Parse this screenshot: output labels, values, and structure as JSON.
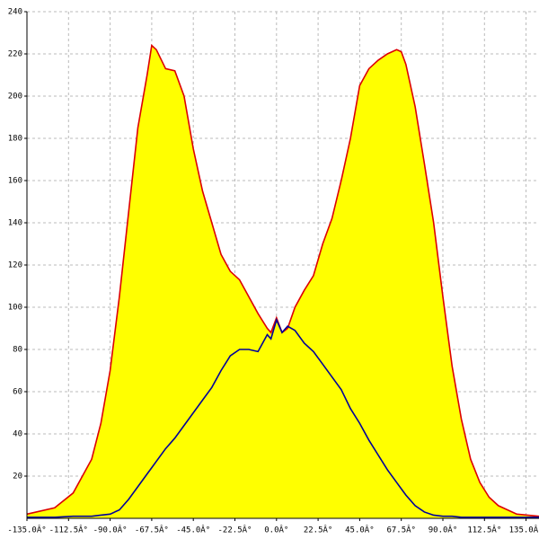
{
  "chart_data": {
    "type": "line",
    "x": [
      -135,
      -120,
      -110,
      -100,
      -95,
      -90,
      -85,
      -80,
      -75,
      -70,
      -67.5,
      -65,
      -60,
      -55,
      -50,
      -45,
      -40,
      -35,
      -30,
      -25,
      -20,
      -15,
      -10,
      -5,
      -3,
      0,
      3,
      6,
      10,
      15,
      20,
      25,
      30,
      35,
      40,
      45,
      50,
      55,
      60,
      65,
      67.5,
      70,
      75,
      80,
      85,
      90,
      95,
      100,
      105,
      110,
      115,
      120,
      130,
      142
    ],
    "series": [
      {
        "color": "#dd0000",
        "fill": "#ffff00",
        "values": [
          2,
          5,
          12,
          28,
          45,
          70,
          105,
          145,
          185,
          210,
          224,
          222,
          213,
          212,
          200,
          175,
          155,
          140,
          125,
          117,
          113,
          105,
          97,
          90,
          88,
          95,
          88,
          90,
          100,
          108,
          115,
          130,
          142,
          160,
          180,
          205,
          213,
          217,
          220,
          222,
          221,
          215,
          195,
          168,
          140,
          105,
          72,
          47,
          28,
          17,
          10,
          6,
          2,
          1
        ]
      },
      {
        "color": "#000099",
        "values": [
          0.5,
          0.5,
          1,
          1,
          1.5,
          2,
          4,
          9,
          15,
          21,
          24,
          27,
          33,
          38,
          44,
          50,
          56,
          62,
          70,
          77,
          80,
          80,
          79,
          87,
          85,
          94,
          88,
          91,
          89,
          83,
          79,
          73,
          67,
          61,
          52,
          45,
          37,
          30,
          23,
          17,
          14,
          11,
          6,
          3,
          1.5,
          1,
          1,
          0.5,
          0.5,
          0.5,
          0.5,
          0.5,
          0.5,
          0.5
        ]
      }
    ],
    "xlim": [
      -135,
      142
    ],
    "ylim": [
      0,
      240
    ],
    "xticks": [
      {
        "value": -135,
        "label": "-135.0Â°"
      },
      {
        "value": -112.5,
        "label": "-112.5Â°"
      },
      {
        "value": -90,
        "label": "-90.0Â°"
      },
      {
        "value": -67.5,
        "label": "-67.5Â°"
      },
      {
        "value": -45,
        "label": "-45.0Â°"
      },
      {
        "value": -22.5,
        "label": "-22.5Â°"
      },
      {
        "value": 0,
        "label": "0.0Â°"
      },
      {
        "value": 22.5,
        "label": "22.5Â°"
      },
      {
        "value": 45,
        "label": "45.0Â°"
      },
      {
        "value": 67.5,
        "label": "67.5Â°"
      },
      {
        "value": 90,
        "label": "90.0Â°"
      },
      {
        "value": 112.5,
        "label": "112.5Â°"
      },
      {
        "value": 135,
        "label": "135.0Â°"
      }
    ],
    "yticks": [
      20,
      40,
      60,
      80,
      100,
      120,
      140,
      160,
      180,
      200,
      220,
      240
    ],
    "grid": true
  }
}
